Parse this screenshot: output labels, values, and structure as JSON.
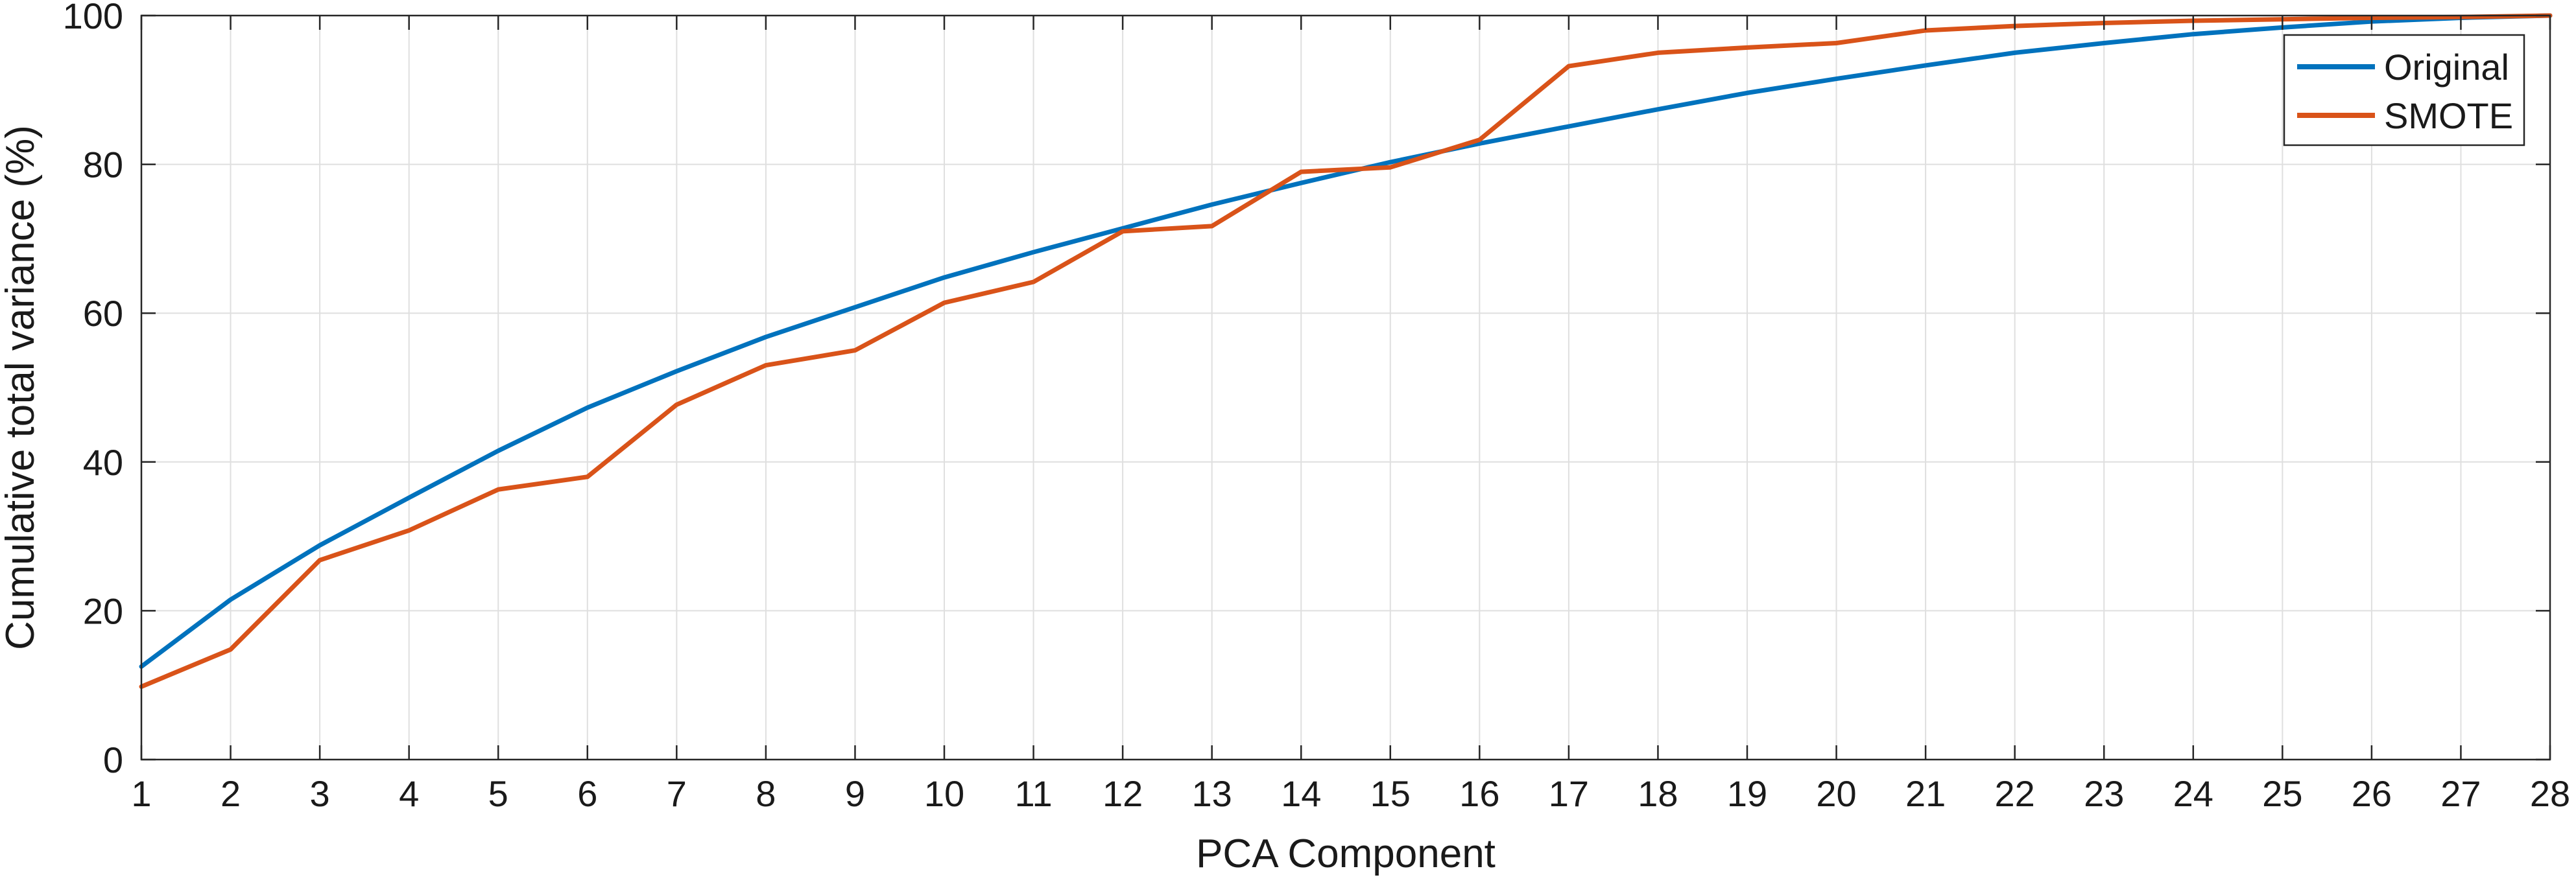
{
  "chart_data": {
    "type": "line",
    "title": "",
    "xlabel": "PCA Component",
    "ylabel": "Cumulative total variance (%)",
    "xlim": [
      1,
      28
    ],
    "ylim": [
      0,
      100
    ],
    "xticks": [
      1,
      2,
      3,
      4,
      5,
      6,
      7,
      8,
      9,
      10,
      11,
      12,
      13,
      14,
      15,
      16,
      17,
      18,
      19,
      20,
      21,
      22,
      23,
      24,
      25,
      26,
      27,
      28
    ],
    "yticks": [
      0,
      20,
      40,
      60,
      80,
      100
    ],
    "grid": true,
    "legend_position": "top-right",
    "x": [
      1,
      2,
      3,
      4,
      5,
      6,
      7,
      8,
      9,
      10,
      11,
      12,
      13,
      14,
      15,
      16,
      17,
      18,
      19,
      20,
      21,
      22,
      23,
      24,
      25,
      26,
      27,
      28
    ],
    "series": [
      {
        "name": "Original",
        "color": "#0072BD",
        "values": [
          12.5,
          21.5,
          28.8,
          35.2,
          41.5,
          47.3,
          52.2,
          56.8,
          60.8,
          64.8,
          68.2,
          71.4,
          74.6,
          77.5,
          80.3,
          82.8,
          85.1,
          87.4,
          89.6,
          91.5,
          93.3,
          95.0,
          96.3,
          97.5,
          98.4,
          99.2,
          99.7,
          100.0
        ]
      },
      {
        "name": "SMOTE",
        "color": "#D95319",
        "values": [
          9.8,
          14.8,
          26.8,
          30.8,
          36.3,
          38.0,
          47.7,
          53.0,
          55.0,
          61.4,
          64.2,
          71.0,
          71.7,
          79.0,
          79.6,
          83.3,
          93.2,
          95.0,
          95.7,
          96.3,
          98.0,
          98.6,
          99.0,
          99.3,
          99.5,
          99.7,
          99.8,
          100.0
        ]
      }
    ]
  }
}
